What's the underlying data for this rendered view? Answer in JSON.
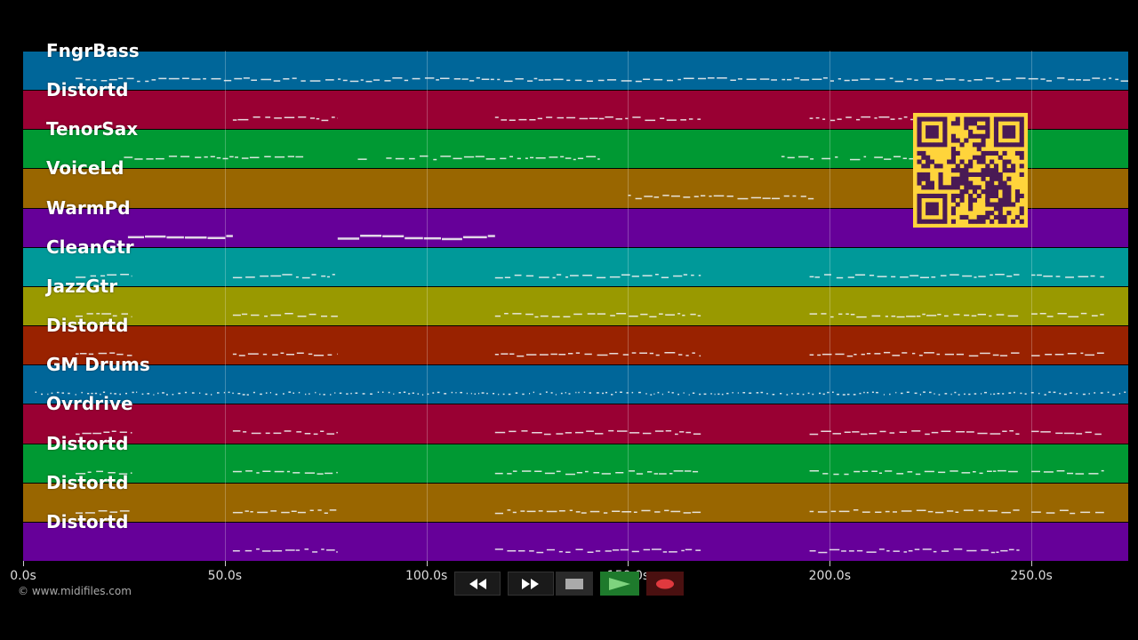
{
  "tracks": [
    {
      "label": "FngrBass",
      "color": "#006699",
      "pattern": "flat"
    },
    {
      "label": "Distortd",
      "color": "#990033",
      "pattern": "phrases"
    },
    {
      "label": "TenorSax",
      "color": "#009933",
      "pattern": "dashes"
    },
    {
      "label": "VoiceLd",
      "color": "#996600",
      "pattern": "middle"
    },
    {
      "label": "WarmPd",
      "color": "#660099",
      "pattern": "pad"
    },
    {
      "label": "CleanGtr",
      "color": "#009999",
      "pattern": "dense"
    },
    {
      "label": "JazzGtr",
      "color": "#999900",
      "pattern": "dense"
    },
    {
      "label": "Distortd",
      "color": "#992200",
      "pattern": "dense"
    },
    {
      "label": "GM Drums",
      "color": "#006699",
      "pattern": "drums"
    },
    {
      "label": "Ovrdrive",
      "color": "#990033",
      "pattern": "dense"
    },
    {
      "label": "Distortd",
      "color": "#009933",
      "pattern": "dense"
    },
    {
      "label": "Distortd",
      "color": "#996600",
      "pattern": "dense"
    },
    {
      "label": "Distortd",
      "color": "#660099",
      "pattern": "phrases"
    }
  ],
  "timeline": {
    "max_seconds": 274,
    "ticks": [
      {
        "value": 0,
        "label": "0.0s"
      },
      {
        "value": 50,
        "label": "50.0s"
      },
      {
        "value": 100,
        "label": "100.0s"
      },
      {
        "value": 150,
        "label": "150.0s"
      },
      {
        "value": 200,
        "label": "200.0s"
      },
      {
        "value": 250,
        "label": "250.0s"
      }
    ]
  },
  "copyright": "© www.midifiles.com",
  "transport": {
    "rewind_icon": "rewind-icon",
    "fast_forward_icon": "fast-forward-icon",
    "stop_icon": "stop-icon",
    "play_icon": "play-icon",
    "record_icon": "record-icon",
    "play_color": "#1e7a2c",
    "record_color": "#e0393e"
  },
  "qr_icon": "qr-code-icon"
}
